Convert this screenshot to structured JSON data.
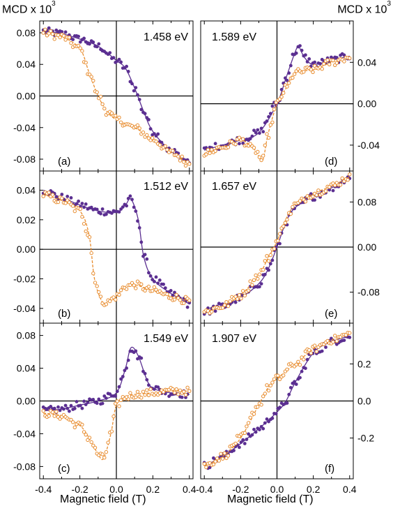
{
  "y_axis_label": {
    "text": "MCD x 10",
    "exponent": "3"
  },
  "x_axis_label": "Magnetic field (T)",
  "colors": {
    "series_filled": "#5b2f91",
    "series_open": "#e88c2e",
    "axis": "#000000"
  },
  "chart_data": [
    {
      "type": "scatter",
      "panel": "(a)",
      "energy": "1.458 eV",
      "xlabel": "Magnetic field (T)",
      "ylabel": "MCD x 10^3",
      "xlim": [
        -0.42,
        0.42
      ],
      "ylim": [
        -0.095,
        0.095
      ],
      "y_ticks": [
        -0.08,
        -0.04,
        0.0,
        0.04,
        0.08
      ],
      "y_tick_labels": [
        "-0.08",
        "-0.04",
        "0.00",
        "0.04",
        "0.08"
      ],
      "series": [
        {
          "style": "filled",
          "x": [
            -0.4,
            -0.3,
            -0.2,
            -0.1,
            0.0,
            0.05,
            0.1,
            0.15,
            0.2,
            0.3,
            0.4
          ],
          "y": [
            0.082,
            0.079,
            0.072,
            0.063,
            0.045,
            0.035,
            0.01,
            -0.02,
            -0.045,
            -0.07,
            -0.083
          ]
        },
        {
          "style": "open",
          "x": [
            -0.4,
            -0.3,
            -0.2,
            -0.15,
            -0.1,
            -0.05,
            0.0,
            0.1,
            0.2,
            0.3,
            0.4
          ],
          "y": [
            0.08,
            0.075,
            0.06,
            0.03,
            0.0,
            -0.02,
            -0.03,
            -0.04,
            -0.055,
            -0.072,
            -0.085
          ]
        }
      ]
    },
    {
      "type": "scatter",
      "panel": "(b)",
      "energy": "1.512 eV",
      "xlabel": "Magnetic field (T)",
      "ylabel": "MCD x 10^3",
      "xlim": [
        -0.42,
        0.42
      ],
      "ylim": [
        -0.05,
        0.053
      ],
      "y_ticks": [
        -0.04,
        -0.02,
        0.0,
        0.02,
        0.04
      ],
      "y_tick_labels": [
        "-0.04",
        "-0.02",
        "0.00",
        "0.02",
        "0.04"
      ],
      "series": [
        {
          "style": "filled",
          "x": [
            -0.4,
            -0.3,
            -0.2,
            -0.1,
            0.0,
            0.05,
            0.08,
            0.12,
            0.15,
            0.2,
            0.3,
            0.4
          ],
          "y": [
            0.04,
            0.035,
            0.03,
            0.026,
            0.025,
            0.03,
            0.034,
            0.02,
            -0.005,
            -0.02,
            -0.03,
            -0.037
          ]
        },
        {
          "style": "open",
          "x": [
            -0.4,
            -0.3,
            -0.2,
            -0.15,
            -0.12,
            -0.08,
            -0.05,
            0.0,
            0.05,
            0.1,
            0.2,
            0.3,
            0.4
          ],
          "y": [
            0.037,
            0.033,
            0.026,
            0.01,
            -0.02,
            -0.035,
            -0.036,
            -0.032,
            -0.025,
            -0.024,
            -0.028,
            -0.032,
            -0.035
          ]
        }
      ]
    },
    {
      "type": "scatter",
      "panel": "(c)",
      "energy": "1.549 eV",
      "xlabel": "Magnetic field (T)",
      "ylabel": "MCD x 10^3",
      "xlim": [
        -0.42,
        0.42
      ],
      "ylim": [
        -0.095,
        0.095
      ],
      "y_ticks": [
        -0.08,
        -0.04,
        0.0,
        0.04,
        0.08
      ],
      "y_tick_labels": [
        "-0.08",
        "-0.04",
        "0.00",
        "0.04",
        "0.08"
      ],
      "series": [
        {
          "style": "filled",
          "x": [
            -0.4,
            -0.3,
            -0.2,
            -0.1,
            0.0,
            0.05,
            0.08,
            0.12,
            0.18,
            0.25,
            0.3,
            0.4
          ],
          "y": [
            -0.012,
            -0.01,
            -0.005,
            0.0,
            0.01,
            0.04,
            0.065,
            0.055,
            0.02,
            0.012,
            0.01,
            0.008
          ]
        },
        {
          "style": "open",
          "x": [
            -0.4,
            -0.3,
            -0.2,
            -0.15,
            -0.1,
            -0.07,
            -0.03,
            0.0,
            0.05,
            0.1,
            0.2,
            0.3,
            0.4
          ],
          "y": [
            -0.015,
            -0.018,
            -0.03,
            -0.045,
            -0.065,
            -0.07,
            -0.04,
            -0.005,
            0.005,
            0.008,
            0.01,
            0.012,
            0.012
          ]
        }
      ]
    },
    {
      "type": "scatter",
      "panel": "(d)",
      "energy": "1.589 eV",
      "xlabel": "Magnetic field (T)",
      "ylabel": "MCD x 10^3",
      "xlim": [
        -0.42,
        0.42
      ],
      "ylim": [
        -0.065,
        0.08
      ],
      "y_ticks": [
        -0.04,
        0.0,
        0.04
      ],
      "y_tick_labels": [
        "-0.04",
        "0.00",
        "0.04"
      ],
      "series": [
        {
          "style": "filled",
          "x": [
            -0.4,
            -0.3,
            -0.2,
            -0.1,
            0.0,
            0.05,
            0.1,
            0.12,
            0.15,
            0.2,
            0.3,
            0.4
          ],
          "y": [
            -0.045,
            -0.04,
            -0.035,
            -0.028,
            0.0,
            0.025,
            0.05,
            0.055,
            0.045,
            0.038,
            0.042,
            0.046
          ]
        },
        {
          "style": "open",
          "x": [
            -0.4,
            -0.3,
            -0.2,
            -0.12,
            -0.08,
            -0.05,
            0.0,
            0.05,
            0.1,
            0.2,
            0.3,
            0.4
          ],
          "y": [
            -0.048,
            -0.042,
            -0.035,
            -0.045,
            -0.055,
            -0.03,
            0.0,
            0.015,
            0.03,
            0.033,
            0.04,
            0.045
          ]
        }
      ]
    },
    {
      "type": "scatter",
      "panel": "(e)",
      "energy": "1.657 eV",
      "xlabel": "Magnetic field (T)",
      "ylabel": "MCD x 10^3",
      "xlim": [
        -0.42,
        0.42
      ],
      "ylim": [
        -0.135,
        0.135
      ],
      "y_ticks": [
        -0.08,
        0.0,
        0.08
      ],
      "y_tick_labels": [
        "-0.08",
        "0.00",
        "0.08"
      ],
      "series": [
        {
          "style": "filled",
          "x": [
            -0.4,
            -0.3,
            -0.2,
            -0.1,
            -0.05,
            0.0,
            0.05,
            0.1,
            0.2,
            0.3,
            0.4
          ],
          "y": [
            -0.115,
            -0.105,
            -0.09,
            -0.065,
            -0.04,
            0.0,
            0.045,
            0.07,
            0.09,
            0.105,
            0.125
          ]
        },
        {
          "style": "open",
          "x": [
            -0.4,
            -0.3,
            -0.2,
            -0.1,
            -0.05,
            0.0,
            0.05,
            0.1,
            0.2,
            0.3,
            0.4
          ],
          "y": [
            -0.115,
            -0.105,
            -0.085,
            -0.05,
            -0.02,
            0.01,
            0.05,
            0.075,
            0.095,
            0.108,
            0.125
          ]
        }
      ]
    },
    {
      "type": "scatter",
      "panel": "(f)",
      "energy": "1.907 eV",
      "xlabel": "Magnetic field (T)",
      "ylabel": "MCD x 10^3",
      "xlim": [
        -0.42,
        0.42
      ],
      "ylim": [
        -0.42,
        0.42
      ],
      "y_ticks": [
        -0.2,
        0.0,
        0.2
      ],
      "y_tick_labels": [
        "-0.2",
        "0.0",
        "0.2"
      ],
      "series": [
        {
          "style": "filled",
          "x": [
            -0.4,
            -0.3,
            -0.2,
            -0.1,
            0.0,
            0.05,
            0.1,
            0.2,
            0.3,
            0.4
          ],
          "y": [
            -0.35,
            -0.3,
            -0.23,
            -0.15,
            -0.06,
            0.0,
            0.1,
            0.26,
            0.32,
            0.35
          ]
        },
        {
          "style": "open",
          "x": [
            -0.4,
            -0.3,
            -0.2,
            -0.1,
            -0.05,
            0.0,
            0.1,
            0.2,
            0.3,
            0.4
          ],
          "y": [
            -0.35,
            -0.3,
            -0.2,
            -0.02,
            0.07,
            0.12,
            0.2,
            0.28,
            0.33,
            0.36
          ]
        }
      ]
    }
  ]
}
